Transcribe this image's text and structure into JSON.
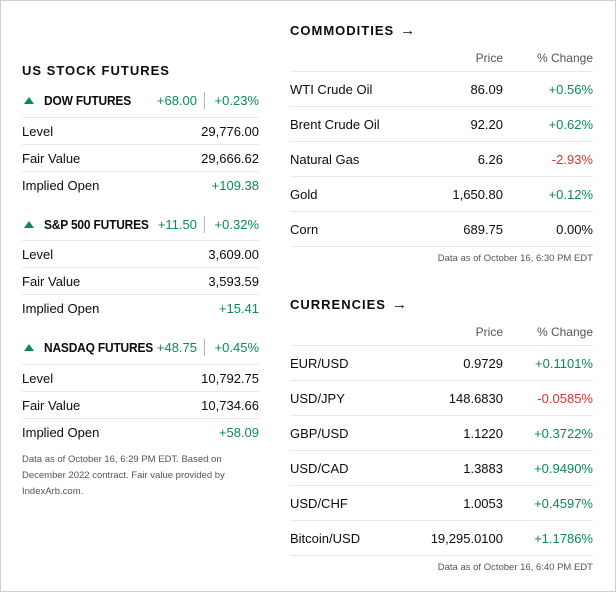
{
  "us_futures": {
    "title": "US STOCK FUTURES",
    "indices": [
      {
        "name": "DOW FUTURES",
        "change": "+68.00",
        "pct": "+0.23%",
        "rows": [
          {
            "label": "Level",
            "value": "29,776.00"
          },
          {
            "label": "Fair Value",
            "value": "29,666.62"
          },
          {
            "label": "Implied Open",
            "value": "+109.38"
          }
        ]
      },
      {
        "name": "S&P 500 FUTURES",
        "change": "+11.50",
        "pct": "+0.32%",
        "rows": [
          {
            "label": "Level",
            "value": "3,609.00"
          },
          {
            "label": "Fair Value",
            "value": "3,593.59"
          },
          {
            "label": "Implied Open",
            "value": "+15.41"
          }
        ]
      },
      {
        "name": "NASDAQ FUTURES",
        "change": "+48.75",
        "pct": "+0.45%",
        "rows": [
          {
            "label": "Level",
            "value": "10,792.75"
          },
          {
            "label": "Fair Value",
            "value": "10,734.66"
          },
          {
            "label": "Implied Open",
            "value": "+58.09"
          }
        ]
      }
    ],
    "note": "Data as of October 16, 6:29 PM EDT. Based on December 2022 contract. Fair value provided by IndexArb.com."
  },
  "commodities": {
    "title": "COMMODITIES",
    "arrow": "→",
    "headers": {
      "price": "Price",
      "change": "% Change"
    },
    "rows": [
      {
        "name": "WTI Crude Oil",
        "price": "86.09",
        "change": "+0.56%"
      },
      {
        "name": "Brent Crude Oil",
        "price": "92.20",
        "change": "+0.62%"
      },
      {
        "name": "Natural Gas",
        "price": "6.26",
        "change": "-2.93%"
      },
      {
        "name": "Gold",
        "price": "1,650.80",
        "change": "+0.12%"
      },
      {
        "name": "Corn",
        "price": "689.75",
        "change": "0.00%"
      }
    ],
    "note": "Data as of October 16, 6:30 PM EDT"
  },
  "currencies": {
    "title": "CURRENCIES",
    "arrow": "→",
    "headers": {
      "price": "Price",
      "change": "% Change"
    },
    "rows": [
      {
        "name": "EUR/USD",
        "price": "0.9729",
        "change": "+0.1101%"
      },
      {
        "name": "USD/JPY",
        "price": "148.6830",
        "change": "-0.0585%"
      },
      {
        "name": "GBP/USD",
        "price": "1.1220",
        "change": "+0.3722%"
      },
      {
        "name": "USD/CAD",
        "price": "1.3883",
        "change": "+0.9490%"
      },
      {
        "name": "USD/CHF",
        "price": "1.0053",
        "change": "+0.4597%"
      },
      {
        "name": "Bitcoin/USD",
        "price": "19,295.0100",
        "change": "+1.1786%"
      }
    ],
    "note": "Data as of October 16, 6:40 PM EDT"
  },
  "colors": {
    "positive": "#0a8a5a",
    "negative": "#d9332b",
    "neutral": "#0c0c0c"
  }
}
